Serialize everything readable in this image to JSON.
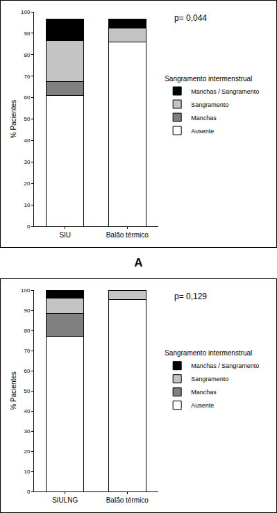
{
  "chart_data": [
    {
      "type": "bar",
      "stacked": true,
      "panel_label": "A",
      "annotation": "p= 0,044",
      "ylabel": "% Pacientes",
      "legend_title": "Sangramento intermenstrual",
      "legend": "right",
      "categories": [
        "SIU",
        "Balão térmico"
      ],
      "ylim": [
        0,
        100
      ],
      "yticks": [
        0,
        10,
        20,
        30,
        40,
        50,
        60,
        70,
        80,
        90,
        100
      ],
      "grid": false,
      "series": [
        {
          "name": "Ausente",
          "color": "#ffffff",
          "values": [
            61,
            86
          ]
        },
        {
          "name": "Manchas",
          "color": "#808080",
          "values": [
            6.5,
            0
          ]
        },
        {
          "name": "Sangramento",
          "color": "#c4c4c4",
          "values": [
            19,
            6.5
          ]
        },
        {
          "name": "Manchas / Sangramento",
          "color": "#000000",
          "values": [
            10,
            4
          ]
        }
      ]
    },
    {
      "type": "bar",
      "stacked": true,
      "annotation": "p= 0,129",
      "ylabel": "% Pacientes",
      "legend_title": "Sangramento intermenstrual",
      "legend": "right",
      "categories": [
        "SIULNG",
        "Balão térmico"
      ],
      "ylim": [
        0,
        100
      ],
      "yticks": [
        0,
        10,
        20,
        30,
        40,
        50,
        60,
        70,
        80,
        90,
        100
      ],
      "grid": false,
      "series": [
        {
          "name": "Ausente",
          "color": "#ffffff",
          "values": [
            77,
            95.5
          ]
        },
        {
          "name": "Manchas",
          "color": "#808080",
          "values": [
            11.5,
            0
          ]
        },
        {
          "name": "Sangramento",
          "color": "#c4c4c4",
          "values": [
            7.5,
            4.5
          ]
        },
        {
          "name": "Manchas / Sangramento",
          "color": "#000000",
          "values": [
            4,
            0
          ]
        }
      ]
    }
  ]
}
